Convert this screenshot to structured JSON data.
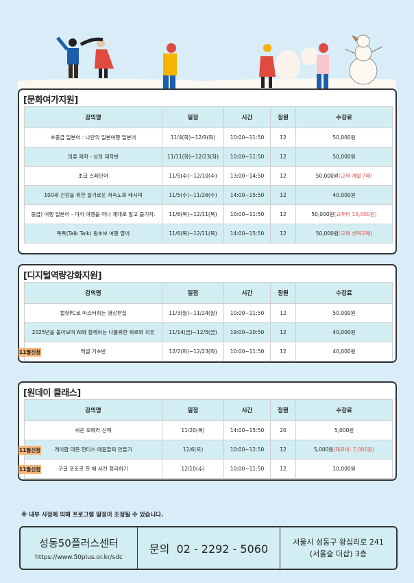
{
  "headers": [
    "강의명",
    "일정",
    "시간",
    "정원",
    "수강료"
  ],
  "sections": [
    {
      "title": "[문화여가지원]",
      "rows": [
        {
          "name": "초중급 일본어 : 나만의 일본여행 일본어",
          "schedule": "11/4(화)~12/9(화)",
          "time": "10:00~11:50",
          "capacity": "12",
          "fee": "50,000원",
          "fee_note": ""
        },
        {
          "name": "의류 제작 - 상의 제작반",
          "schedule": "11/11(화)~12/23(화)",
          "time": "10:00~11:50",
          "capacity": "12",
          "fee": "50,000원",
          "fee_note": ""
        },
        {
          "name": "초급 스페인어",
          "schedule": "11/5(수)~12/10(수)",
          "time": "13:00~14:50",
          "capacity": "12",
          "fee": "50,000원",
          "fee_note": "(교재 개별구매)"
        },
        {
          "name": "100세 건강을 위한 슬기로운 저속노화 레시피",
          "schedule": "11/5(수)~11/26(수)",
          "time": "14:00~15:50",
          "capacity": "12",
          "fee": "40,000원",
          "fee_note": ""
        },
        {
          "name": "중급) 여행 일본어 - 미식 여행을 떠나 제대로 알고 즐기자.",
          "schedule": "11/6(목)~12/11(목)",
          "time": "10:00~11:50",
          "capacity": "12",
          "fee": "50,000원",
          "fee_note": "(교재비 19,000원)"
        },
        {
          "name": "톡톡(Talk Talk) 왕초보 여행 영어",
          "schedule": "11/6(목)~12/11(목)",
          "time": "14:00~15:50",
          "capacity": "12",
          "fee": "50,000원",
          "fee_note": "(교재 선택구매)"
        }
      ]
    },
    {
      "title": "[디지털역량강화지원]",
      "rows": [
        {
          "name": "캡컷PC로 마스터하는 영상편집",
          "schedule": "11/3(월)~11/24(월)",
          "time": "10:00~11:50",
          "capacity": "12",
          "fee": "50,000원",
          "fee_note": ""
        },
        {
          "name": "2025년을 돌아보며 AI와 함께하는 나를위한 위로와 치유",
          "schedule": "11/14(금)~12/5(금)",
          "time": "19:00~20:50",
          "capacity": "12",
          "fee": "40,000원",
          "fee_note": ""
        },
        {
          "name": "엑셀 기초반",
          "schedule": "12/2(화)~12/23(화)",
          "time": "10:00~11:50",
          "capacity": "12",
          "fee": "40,000원",
          "fee_note": "",
          "badge": "11월신청"
        }
      ]
    },
    {
      "title": "[원데이 클래스]",
      "rows": [
        {
          "name": "쉬운 오페라 산책",
          "schedule": "11/20(목)",
          "time": "14:00~15:50",
          "capacity": "20",
          "fee": "5,000원",
          "fee_note": ""
        },
        {
          "name": "케이팝 데몬 헌터스 매듭팔찌 만들기",
          "schedule": "12/6(토)",
          "time": "10:00~12:50",
          "capacity": "12",
          "fee": "5,000원",
          "fee_note": "(재료비: 7,000원)",
          "badge": "11월신청"
        },
        {
          "name": "구글 포토로 한 해 사진 정리하기",
          "schedule": "12/10(수)",
          "time": "10:00~11:50",
          "capacity": "12",
          "fee": "10,000원",
          "fee_note": "",
          "badge": "11월신청"
        }
      ]
    }
  ],
  "notice": "※ 내부 사정에 의해 프로그램 일정이 조정될 수 있습니다.",
  "footer": {
    "org": "성동50플러스센터",
    "url": "https://www.50plus.or.kr/sdc",
    "contact": "문의  02 - 2292 - 5060",
    "address_line1": "서울시 성동구 왕십리로 241",
    "address_line2": "(서울숲 더샵) 3층"
  },
  "colors": {
    "background": "#d9edf8",
    "header_row": "#d2eef2",
    "note": "#e8504f",
    "badge": "#f7b77c"
  }
}
